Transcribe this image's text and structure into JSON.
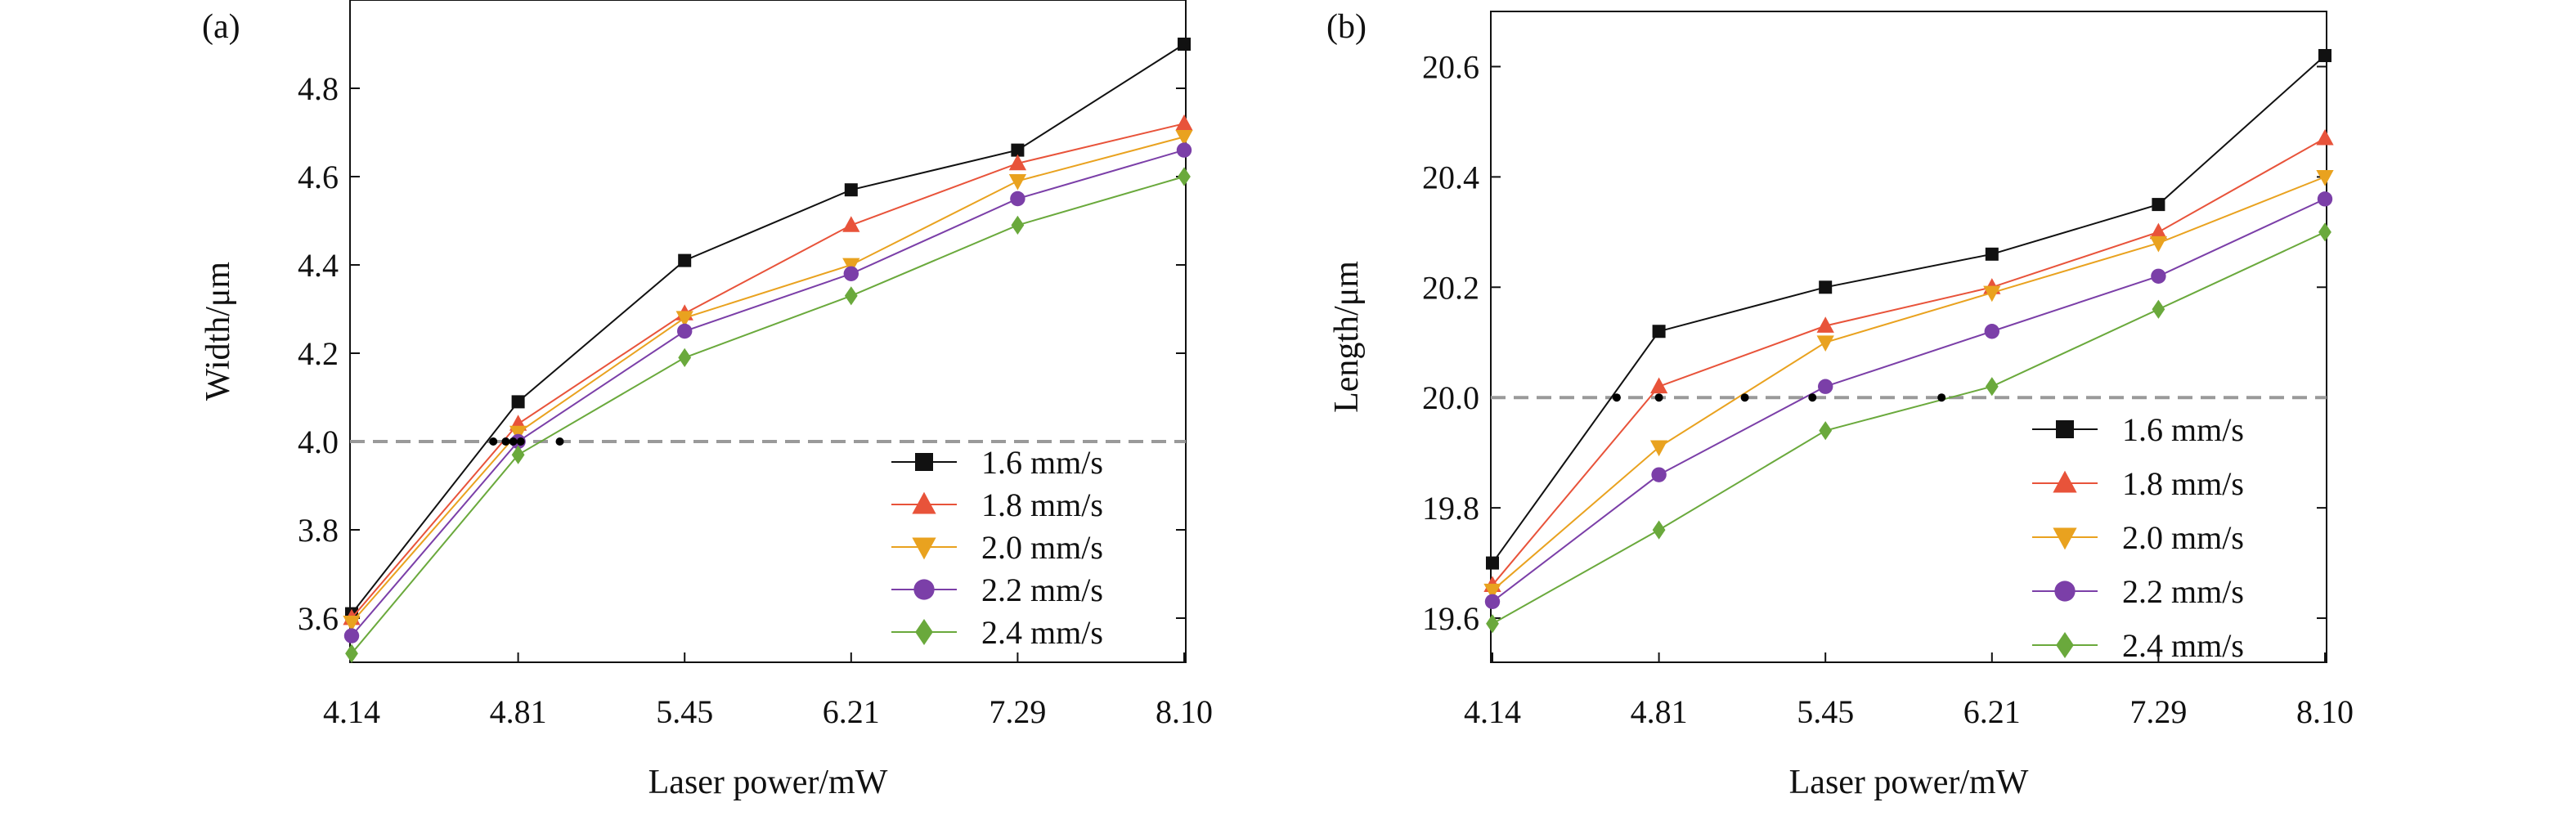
{
  "chart_data": [
    {
      "type": "line",
      "panel_label": "(a)",
      "x_categories": [
        "4.14",
        "4.81",
        "5.45",
        "6.21",
        "7.29",
        "8.10"
      ],
      "xlabel": "Laser power/mW",
      "ylabel": "Width/μm",
      "ylim": [
        3.5,
        5.0
      ],
      "yticks": [
        "3.6",
        "3.8",
        "4.0",
        "4.2",
        "4.4",
        "4.6",
        "4.8"
      ],
      "reference_line": {
        "y": 4.0,
        "style": "dashed"
      },
      "intersection_x": [
        4.71,
        4.76,
        4.79,
        4.82,
        4.97
      ],
      "legend_position": "bottom-right",
      "series": [
        {
          "name": "1.6 mm/s",
          "color": "#111111",
          "marker": "square",
          "values": [
            3.61,
            4.09,
            4.41,
            4.57,
            4.66,
            4.9
          ]
        },
        {
          "name": "1.8 mm/s",
          "color": "#e8533a",
          "marker": "triangle-up",
          "values": [
            3.6,
            4.04,
            4.29,
            4.49,
            4.63,
            4.72
          ]
        },
        {
          "name": "2.0 mm/s",
          "color": "#e9a21f",
          "marker": "triangle-down",
          "values": [
            3.59,
            4.02,
            4.28,
            4.4,
            4.59,
            4.69
          ]
        },
        {
          "name": "2.2 mm/s",
          "color": "#7b3fa8",
          "marker": "circle",
          "values": [
            3.56,
            4.0,
            4.25,
            4.38,
            4.55,
            4.66
          ]
        },
        {
          "name": "2.4 mm/s",
          "color": "#6aa93c",
          "marker": "diamond",
          "values": [
            3.52,
            3.97,
            4.19,
            4.33,
            4.49,
            4.6
          ]
        }
      ]
    },
    {
      "type": "line",
      "panel_label": "(b)",
      "x_categories": [
        "4.14",
        "4.81",
        "5.45",
        "6.21",
        "7.29",
        "8.10"
      ],
      "xlabel": "Laser power/mW",
      "ylabel": "Length/μm",
      "ylim": [
        19.52,
        20.7
      ],
      "yticks": [
        "19.6",
        "19.8",
        "20.0",
        "20.2",
        "20.4",
        "20.6"
      ],
      "reference_line": {
        "y": 20.0,
        "style": "dashed"
      },
      "intersection_x": [
        4.64,
        4.81,
        5.14,
        5.4,
        5.98
      ],
      "legend_position": "bottom-right",
      "series": [
        {
          "name": "1.6 mm/s",
          "color": "#111111",
          "marker": "square",
          "values": [
            19.7,
            20.12,
            20.2,
            20.26,
            20.35,
            20.62
          ]
        },
        {
          "name": "1.8 mm/s",
          "color": "#e8533a",
          "marker": "triangle-up",
          "values": [
            19.66,
            20.02,
            20.13,
            20.2,
            20.3,
            20.47
          ]
        },
        {
          "name": "2.0 mm/s",
          "color": "#e9a21f",
          "marker": "triangle-down",
          "values": [
            19.65,
            19.91,
            20.1,
            20.19,
            20.28,
            20.4
          ]
        },
        {
          "name": "2.2 mm/s",
          "color": "#7b3fa8",
          "marker": "circle",
          "values": [
            19.63,
            19.86,
            20.02,
            20.12,
            20.22,
            20.36
          ]
        },
        {
          "name": "2.4 mm/s",
          "color": "#6aa93c",
          "marker": "diamond",
          "values": [
            19.59,
            19.76,
            19.94,
            20.02,
            20.16,
            20.3
          ]
        }
      ]
    }
  ]
}
